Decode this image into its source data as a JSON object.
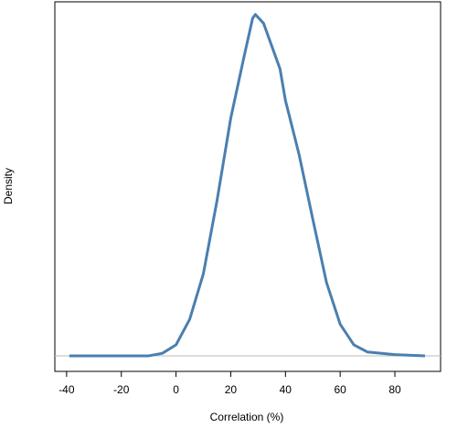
{
  "chart_data": {
    "type": "line",
    "x_label": "Correlation (%)",
    "y_label": "Density",
    "x": [
      -39,
      -20,
      -10,
      -5,
      0,
      5,
      10,
      15,
      20,
      25,
      28,
      29,
      32,
      35,
      38,
      40,
      45,
      50,
      55,
      60,
      65,
      70,
      80,
      91
    ],
    "series": [
      {
        "color": "#4a7fb0",
        "values": [
          0,
          0,
          0,
          0.0002,
          0.00087,
          0.0029,
          0.0065,
          0.0123,
          0.0188,
          0.0238,
          0.0267,
          0.027,
          0.0263,
          0.0245,
          0.0227,
          0.0202,
          0.0159,
          0.0108,
          0.0058,
          0.0025,
          0.00087,
          0.0003,
          0.0001,
          0
        ]
      }
    ],
    "xlim": [
      -44.3,
      96.7
    ],
    "xticks": [
      -40,
      -20,
      0,
      20,
      40,
      60,
      80
    ],
    "ylim": [
      -0.00123,
      0.028
    ]
  }
}
